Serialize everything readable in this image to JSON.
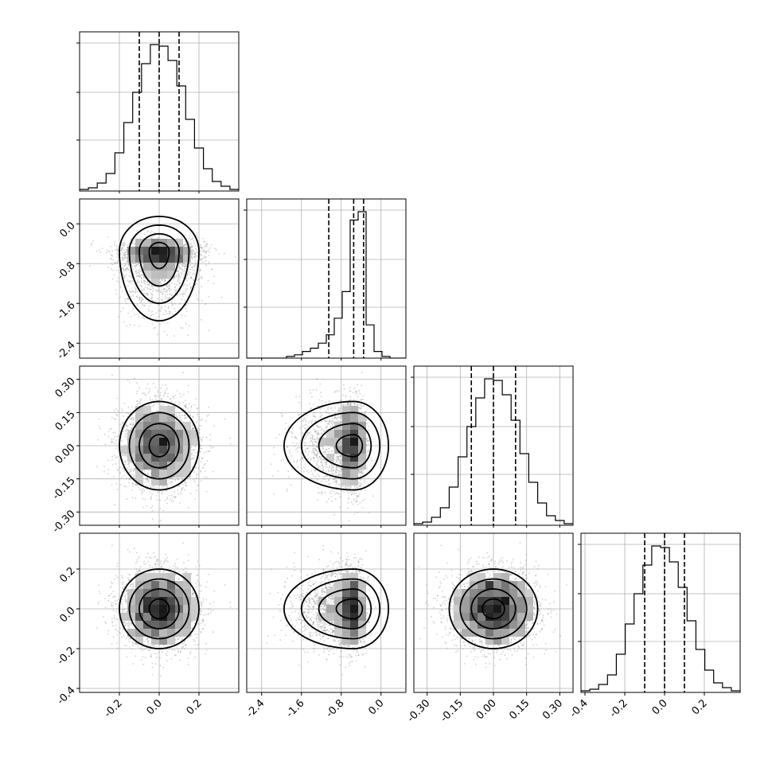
{
  "chart_data": {
    "type": "corner",
    "n_params": 4,
    "ranges": [
      [
        -0.4,
        0.4
      ],
      [
        -2.7,
        0.5
      ],
      [
        -0.36,
        0.36
      ],
      [
        -0.42,
        0.38
      ]
    ],
    "ticks": [
      [
        "-0.2",
        "0.0",
        "0.2"
      ],
      [
        "-2.4",
        "-1.6",
        "-0.8",
        "0.0"
      ],
      [
        "-0.30",
        "-0.15",
        "0.00",
        "0.15",
        "0.30"
      ],
      [
        "-0.4",
        "-0.2",
        "0.0",
        "0.2"
      ]
    ],
    "tick_values": [
      [
        -0.2,
        0.0,
        0.2
      ],
      [
        -2.4,
        -1.6,
        -0.8,
        0.0
      ],
      [
        -0.3,
        -0.15,
        0.0,
        0.15,
        0.3
      ],
      [
        -0.4,
        -0.2,
        0.0,
        0.2
      ]
    ],
    "quantiles": [
      [
        -0.1,
        0.0,
        0.1
      ],
      [
        -1.05,
        -0.55,
        -0.35
      ],
      [
        -0.1,
        0.0,
        0.1
      ],
      [
        -0.1,
        0.0,
        0.1
      ]
    ],
    "histograms": [
      [
        1,
        2,
        5,
        11,
        24,
        43,
        62,
        80,
        92,
        91,
        82,
        66,
        45,
        27,
        14,
        6,
        3,
        1
      ],
      [
        0,
        0,
        0,
        0,
        0,
        1,
        2,
        4,
        6,
        9,
        14,
        24,
        40,
        83,
        88,
        20,
        4,
        1,
        0,
        0
      ],
      [
        1,
        2,
        5,
        11,
        24,
        43,
        62,
        80,
        92,
        91,
        82,
        66,
        45,
        27,
        14,
        6,
        3,
        1
      ],
      [
        1,
        2,
        5,
        11,
        24,
        43,
        62,
        80,
        92,
        91,
        82,
        66,
        45,
        27,
        14,
        6,
        3,
        1
      ]
    ],
    "correlations": [
      [
        1,
        0,
        0,
        0
      ],
      [
        0,
        1,
        0,
        0
      ],
      [
        0,
        0,
        1,
        0
      ],
      [
        0,
        0,
        0,
        1
      ]
    ],
    "grid": true,
    "density_color": "#000000",
    "point_color": "#9a9a9a",
    "background": "#ffffff"
  }
}
